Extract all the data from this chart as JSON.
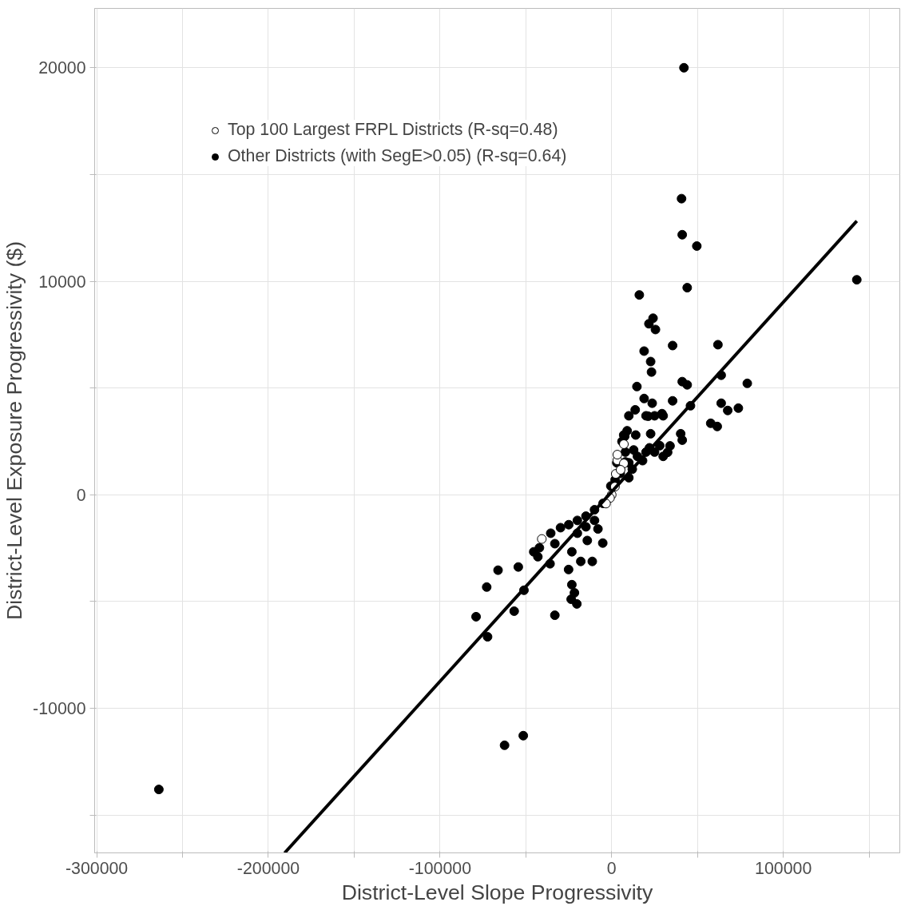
{
  "chart_data": {
    "type": "scatter",
    "xlabel": "District-Level Slope Progressivity",
    "ylabel": "District-Level Exposure Progressivity ($)",
    "xlim": [
      -301200,
      167850
    ],
    "ylim": [
      -16770,
      22780
    ],
    "xticks": [
      -300000,
      {
        "value": -250000,
        "label": null
      },
      -200000,
      {
        "value": -150000,
        "label": null
      },
      -100000,
      {
        "value": -50000,
        "label": null
      },
      0,
      {
        "value": 50000,
        "label": null
      },
      100000,
      {
        "value": 150000,
        "label": null
      }
    ],
    "yticks": [
      {
        "value": -15000,
        "label": null
      },
      -10000,
      {
        "value": -5000,
        "label": null
      },
      0,
      {
        "value": 5000,
        "label": null
      },
      10000,
      {
        "value": 15000,
        "label": null
      },
      20000
    ],
    "grid": true,
    "legend": "top left",
    "marker": "circle",
    "series": [
      {
        "name": "Other Districts (with SegE>0.05) (R-sq=0.64)",
        "color": "#000000",
        "x": [
          42100,
          40700,
          41100,
          49600,
          44000,
          142800,
          16100,
          24100,
          21700,
          25500,
          35500,
          61900,
          18900,
          22700,
          23200,
          41100,
          44000,
          63800,
          79000,
          14700,
          18900,
          23600,
          35500,
          45900,
          63800,
          57700,
          61500,
          67600,
          73800,
          13700,
          21300,
          29300,
          7600,
          40200,
          41100,
          34000,
          32600,
          22700,
          12800,
          8000,
          -500,
          -263800,
          -62400,
          -51500,
          -79000,
          -72800,
          -72300,
          -66200,
          -54400,
          -56800,
          -51100,
          -33100,
          -35900,
          -43000,
          -45400,
          -42100,
          -35500,
          -25100,
          -23200,
          -21700,
          -23600,
          -20300,
          -18000,
          -11300,
          -23200,
          -5200,
          -14200,
          -29800,
          -33100,
          10000,
          15000,
          20000,
          8000,
          5000,
          10000,
          -5000,
          -10000,
          -15000,
          -20000,
          -25000,
          -10000,
          -15000,
          -8000,
          -20000,
          12000,
          18000,
          25000,
          30000,
          6000,
          9000,
          14000,
          20000,
          25000,
          30000,
          22000,
          28000,
          10000,
          7000,
          3000,
          2000
        ],
        "values": [
          20000,
          13870,
          12180,
          11650,
          9700,
          10070,
          9360,
          8270,
          8010,
          7740,
          6990,
          7030,
          6730,
          6240,
          5750,
          5300,
          5150,
          5600,
          5220,
          5070,
          4510,
          4290,
          4400,
          4170,
          4290,
          3350,
          3200,
          3950,
          4060,
          3980,
          3680,
          3800,
          2740,
          2860,
          2560,
          2290,
          1990,
          2860,
          2100,
          1540,
          410,
          -13800,
          -11730,
          -11280,
          -5710,
          -4320,
          -6650,
          -3530,
          -3380,
          -5450,
          -4470,
          -5640,
          -3230,
          -2900,
          -2670,
          -2480,
          -1800,
          -3500,
          -4210,
          -4590,
          -4890,
          -5110,
          -3120,
          -3120,
          -2670,
          -2260,
          -2140,
          -1540,
          -2290,
          1500,
          1800,
          2000,
          2000,
          1000,
          800,
          -400,
          -700,
          -1000,
          -1200,
          -1400,
          -1200,
          -1500,
          -1600,
          -1800,
          1200,
          1600,
          2000,
          1800,
          2500,
          3000,
          2800,
          3700,
          3700,
          3700,
          2200,
          2300,
          3700,
          2800,
          1500,
          700
        ]
      },
      {
        "name": "Top 100 Largest FRPL Districts (R-sq=0.48)",
        "color": "#ffffff",
        "x": [
          -40700,
          7100,
          3300,
          7100,
          1900,
          0,
          2400,
          3300,
          5200,
          -1000,
          -3300
        ],
        "values": [
          -2070,
          2370,
          1620,
          1470,
          380,
          0,
          980,
          1880,
          1170,
          -150,
          -410
        ]
      },
      {
        "type": "line",
        "marker": "none",
        "color": "#000000",
        "x": [
          -190500,
          142800
        ],
        "values": [
          -16770,
          12820
        ]
      }
    ]
  }
}
